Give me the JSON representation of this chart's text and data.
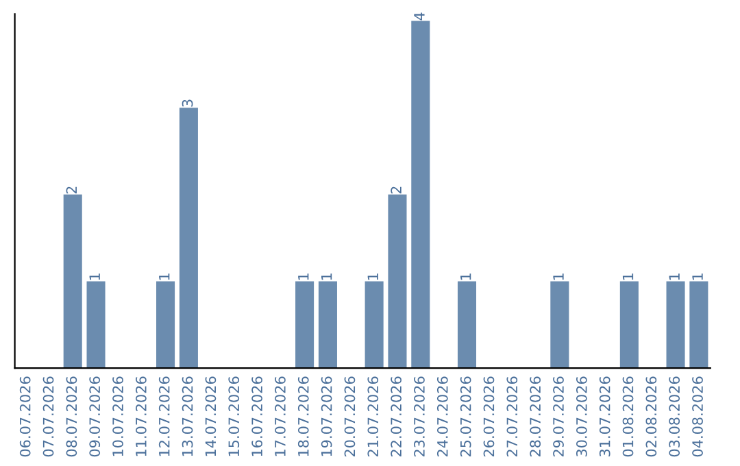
{
  "chart_data": {
    "type": "bar",
    "categories": [
      "06.07.2026",
      "07.07.2026",
      "08.07.2026",
      "09.07.2026",
      "10.07.2026",
      "11.07.2026",
      "12.07.2026",
      "13.07.2026",
      "14.07.2026",
      "15.07.2026",
      "16.07.2026",
      "17.07.2026",
      "18.07.2026",
      "19.07.2026",
      "20.07.2026",
      "21.07.2026",
      "22.07.2026",
      "23.07.2026",
      "24.07.2026",
      "25.07.2026",
      "26.07.2026",
      "27.07.2026",
      "28.07.2026",
      "29.07.2026",
      "30.07.2026",
      "31.07.2026",
      "01.08.2026",
      "02.08.2026",
      "03.08.2026",
      "04.08.2026"
    ],
    "values": [
      0,
      0,
      2,
      1,
      0,
      0,
      1,
      3,
      0,
      0,
      0,
      0,
      1,
      1,
      0,
      1,
      2,
      4,
      0,
      1,
      0,
      0,
      0,
      1,
      0,
      0,
      1,
      0,
      1,
      1
    ],
    "value_labels": [
      null,
      null,
      "2",
      "1",
      null,
      null,
      "1",
      "3",
      null,
      null,
      null,
      null,
      "1",
      "1",
      null,
      "1",
      "2",
      "4",
      null,
      "1",
      null,
      null,
      null,
      "1",
      null,
      null,
      "1",
      null,
      "1",
      "1"
    ],
    "color": "#6b8caf",
    "tick_labels": "x",
    "grid": false,
    "legend": false
  }
}
